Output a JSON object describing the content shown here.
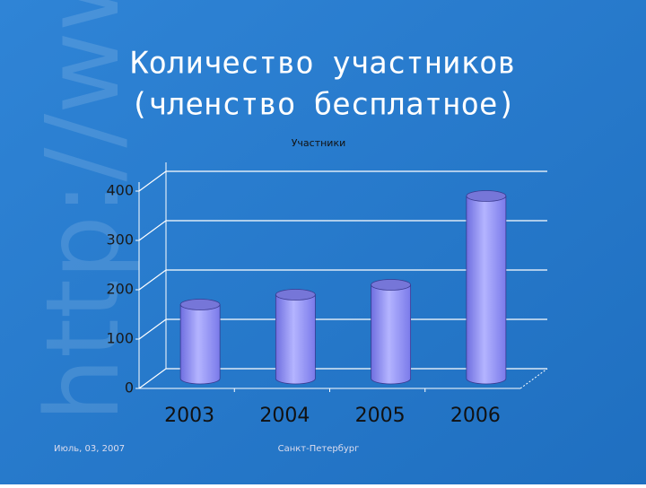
{
  "slide": {
    "watermark": "http://www",
    "title_lines": [
      "Количество участников",
      "(членство бесплатное)"
    ],
    "footer_left": "Июль, 03, 2007",
    "footer_center": "Санкт-Петербург"
  },
  "chart_data": {
    "type": "bar",
    "title": "Участники",
    "categories": [
      "2003",
      "2004",
      "2005",
      "2006"
    ],
    "values": [
      150,
      170,
      190,
      370
    ],
    "color": "#8f8ff5",
    "ylim": [
      0,
      400
    ],
    "yticks": [
      0,
      100,
      200,
      300,
      400
    ],
    "grid": true
  }
}
